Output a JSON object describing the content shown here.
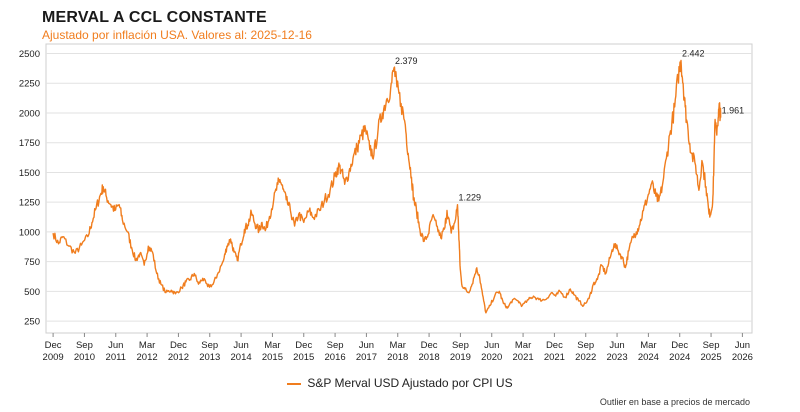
{
  "header": {
    "title": "MERVAL A CCL CONSTANTE",
    "subtitle": "Ajustado por inflación USA. Valores al: 2025-12-16"
  },
  "footer": {
    "legend_label": "S&P Merval USD Ajustado por CPI US",
    "note": "Outlier en base a precios de mercado"
  },
  "colors": {
    "series": "#f07d1e",
    "grid": "#e2e2e2",
    "text": "#222222"
  },
  "chart_data": {
    "type": "line",
    "title": "MERVAL A CCL CONSTANTE",
    "subtitle": "Ajustado por inflación USA. Valores al: 2025-12-16",
    "xlabel": "",
    "ylabel": "",
    "ylim": [
      150,
      2580
    ],
    "xlim": [
      2009.75,
      2026.65
    ],
    "yticks": [
      250,
      500,
      750,
      1000,
      1250,
      1500,
      1750,
      2000,
      2250,
      2500
    ],
    "xticks": [
      {
        "t": 2009.92,
        "line1": "Dec",
        "line2": "2009"
      },
      {
        "t": 2010.67,
        "line1": "Sep",
        "line2": "2010"
      },
      {
        "t": 2011.42,
        "line1": "Jun",
        "line2": "2011"
      },
      {
        "t": 2012.17,
        "line1": "Mar",
        "line2": "2012"
      },
      {
        "t": 2012.92,
        "line1": "Dec",
        "line2": "2012"
      },
      {
        "t": 2013.67,
        "line1": "Sep",
        "line2": "2013"
      },
      {
        "t": 2014.42,
        "line1": "Jun",
        "line2": "2014"
      },
      {
        "t": 2015.17,
        "line1": "Mar",
        "line2": "2015"
      },
      {
        "t": 2015.92,
        "line1": "Dec",
        "line2": "2015"
      },
      {
        "t": 2016.67,
        "line1": "Sep",
        "line2": "2016"
      },
      {
        "t": 2017.42,
        "line1": "Jun",
        "line2": "2017"
      },
      {
        "t": 2018.17,
        "line1": "Mar",
        "line2": "2018"
      },
      {
        "t": 2018.92,
        "line1": "Dec",
        "line2": "2018"
      },
      {
        "t": 2019.67,
        "line1": "Sep",
        "line2": "2019"
      },
      {
        "t": 2020.42,
        "line1": "Jun",
        "line2": "2020"
      },
      {
        "t": 2021.17,
        "line1": "Mar",
        "line2": "2021"
      },
      {
        "t": 2021.92,
        "line1": "Dec",
        "line2": "2021"
      },
      {
        "t": 2022.67,
        "line1": "Sep",
        "line2": "2022"
      },
      {
        "t": 2023.42,
        "line1": "Jun",
        "line2": "2023"
      },
      {
        "t": 2024.17,
        "line1": "Mar",
        "line2": "2024"
      },
      {
        "t": 2024.92,
        "line1": "Dec",
        "line2": "2024"
      },
      {
        "t": 2025.67,
        "line1": "Sep",
        "line2": "2025"
      },
      {
        "t": 2026.42,
        "line1": "Jun",
        "line2": "2026"
      }
    ],
    "series": [
      {
        "name": "S&P Merval USD Ajustado por CPI US",
        "points": [
          [
            2009.92,
            990
          ],
          [
            2010.05,
            900
          ],
          [
            2010.15,
            960
          ],
          [
            2010.3,
            880
          ],
          [
            2010.45,
            820
          ],
          [
            2010.6,
            890
          ],
          [
            2010.75,
            960
          ],
          [
            2010.85,
            1080
          ],
          [
            2010.95,
            1200
          ],
          [
            2011.05,
            1310
          ],
          [
            2011.12,
            1380
          ],
          [
            2011.2,
            1290
          ],
          [
            2011.3,
            1230
          ],
          [
            2011.4,
            1180
          ],
          [
            2011.5,
            1230
          ],
          [
            2011.58,
            1100
          ],
          [
            2011.7,
            1000
          ],
          [
            2011.8,
            870
          ],
          [
            2011.9,
            760
          ],
          [
            2012.0,
            820
          ],
          [
            2012.1,
            720
          ],
          [
            2012.2,
            880
          ],
          [
            2012.3,
            830
          ],
          [
            2012.4,
            650
          ],
          [
            2012.5,
            560
          ],
          [
            2012.62,
            490
          ],
          [
            2012.75,
            510
          ],
          [
            2012.85,
            480
          ],
          [
            2013.0,
            530
          ],
          [
            2013.1,
            580
          ],
          [
            2013.2,
            600
          ],
          [
            2013.3,
            650
          ],
          [
            2013.4,
            560
          ],
          [
            2013.5,
            610
          ],
          [
            2013.62,
            540
          ],
          [
            2013.75,
            560
          ],
          [
            2013.85,
            640
          ],
          [
            2014.0,
            760
          ],
          [
            2014.08,
            880
          ],
          [
            2014.17,
            940
          ],
          [
            2014.25,
            830
          ],
          [
            2014.33,
            760
          ],
          [
            2014.42,
            900
          ],
          [
            2014.5,
            1020
          ],
          [
            2014.58,
            1060
          ],
          [
            2014.67,
            1160
          ],
          [
            2014.75,
            1070
          ],
          [
            2014.85,
            1010
          ],
          [
            2014.92,
            1080
          ],
          [
            2015.0,
            1010
          ],
          [
            2015.1,
            1130
          ],
          [
            2015.2,
            1270
          ],
          [
            2015.3,
            1400
          ],
          [
            2015.35,
            1440
          ],
          [
            2015.42,
            1360
          ],
          [
            2015.5,
            1270
          ],
          [
            2015.6,
            1180
          ],
          [
            2015.7,
            1050
          ],
          [
            2015.8,
            1150
          ],
          [
            2015.92,
            1080
          ],
          [
            2016.05,
            1180
          ],
          [
            2016.15,
            1120
          ],
          [
            2016.3,
            1180
          ],
          [
            2016.42,
            1270
          ],
          [
            2016.55,
            1350
          ],
          [
            2016.67,
            1470
          ],
          [
            2016.75,
            1550
          ],
          [
            2016.82,
            1520
          ],
          [
            2016.9,
            1400
          ],
          [
            2017.0,
            1500
          ],
          [
            2017.1,
            1620
          ],
          [
            2017.2,
            1710
          ],
          [
            2017.3,
            1810
          ],
          [
            2017.4,
            1860
          ],
          [
            2017.5,
            1690
          ],
          [
            2017.6,
            1650
          ],
          [
            2017.7,
            1860
          ],
          [
            2017.8,
            2000
          ],
          [
            2017.9,
            2110
          ],
          [
            2018.0,
            2200
          ],
          [
            2018.08,
            2379
          ],
          [
            2018.15,
            2220
          ],
          [
            2018.25,
            2080
          ],
          [
            2018.35,
            1900
          ],
          [
            2018.42,
            1660
          ],
          [
            2018.5,
            1460
          ],
          [
            2018.55,
            1280
          ],
          [
            2018.62,
            1180
          ],
          [
            2018.7,
            1020
          ],
          [
            2018.8,
            920
          ],
          [
            2018.9,
            980
          ],
          [
            2019.0,
            1130
          ],
          [
            2019.1,
            1050
          ],
          [
            2019.2,
            950
          ],
          [
            2019.3,
            1040
          ],
          [
            2019.35,
            1180
          ],
          [
            2019.45,
            990
          ],
          [
            2019.55,
            1100
          ],
          [
            2019.6,
            1229
          ],
          [
            2019.63,
            1000
          ],
          [
            2019.66,
            720
          ],
          [
            2019.7,
            560
          ],
          [
            2019.78,
            520
          ],
          [
            2019.86,
            490
          ],
          [
            2019.95,
            560
          ],
          [
            2020.05,
            690
          ],
          [
            2020.12,
            640
          ],
          [
            2020.2,
            470
          ],
          [
            2020.28,
            320
          ],
          [
            2020.38,
            380
          ],
          [
            2020.5,
            470
          ],
          [
            2020.6,
            500
          ],
          [
            2020.7,
            400
          ],
          [
            2020.8,
            360
          ],
          [
            2020.92,
            430
          ],
          [
            2021.05,
            420
          ],
          [
            2021.15,
            380
          ],
          [
            2021.3,
            430
          ],
          [
            2021.42,
            460
          ],
          [
            2021.55,
            430
          ],
          [
            2021.7,
            430
          ],
          [
            2021.85,
            490
          ],
          [
            2021.95,
            460
          ],
          [
            2022.05,
            500
          ],
          [
            2022.18,
            450
          ],
          [
            2022.3,
            520
          ],
          [
            2022.4,
            470
          ],
          [
            2022.5,
            420
          ],
          [
            2022.62,
            380
          ],
          [
            2022.75,
            440
          ],
          [
            2022.85,
            560
          ],
          [
            2022.95,
            600
          ],
          [
            2023.05,
            720
          ],
          [
            2023.15,
            650
          ],
          [
            2023.25,
            780
          ],
          [
            2023.35,
            900
          ],
          [
            2023.45,
            840
          ],
          [
            2023.55,
            780
          ],
          [
            2023.62,
            700
          ],
          [
            2023.7,
            840
          ],
          [
            2023.8,
            960
          ],
          [
            2023.88,
            1000
          ],
          [
            2023.95,
            1050
          ],
          [
            2024.05,
            1180
          ],
          [
            2024.15,
            1290
          ],
          [
            2024.25,
            1410
          ],
          [
            2024.35,
            1300
          ],
          [
            2024.42,
            1260
          ],
          [
            2024.5,
            1380
          ],
          [
            2024.6,
            1620
          ],
          [
            2024.7,
            1850
          ],
          [
            2024.8,
            2050
          ],
          [
            2024.88,
            2300
          ],
          [
            2024.95,
            2442
          ],
          [
            2025.0,
            2250
          ],
          [
            2025.05,
            2050
          ],
          [
            2025.12,
            1850
          ],
          [
            2025.2,
            1660
          ],
          [
            2025.3,
            1560
          ],
          [
            2025.38,
            1350
          ],
          [
            2025.45,
            1600
          ],
          [
            2025.55,
            1380
          ],
          [
            2025.62,
            1150
          ],
          [
            2025.68,
            1180
          ],
          [
            2025.72,
            1320
          ],
          [
            2025.76,
            1900
          ],
          [
            2025.8,
            1840
          ],
          [
            2025.84,
            1961
          ],
          [
            2025.87,
            2050
          ],
          [
            2025.9,
            1961
          ]
        ]
      }
    ],
    "annotations": [
      {
        "label": "2.379",
        "t": 2018.08,
        "v": 2379
      },
      {
        "label": "1.229",
        "t": 2019.6,
        "v": 1229
      },
      {
        "label": "2.442",
        "t": 2024.95,
        "v": 2442
      },
      {
        "label": "1.961",
        "t": 2025.9,
        "v": 1961
      }
    ]
  }
}
